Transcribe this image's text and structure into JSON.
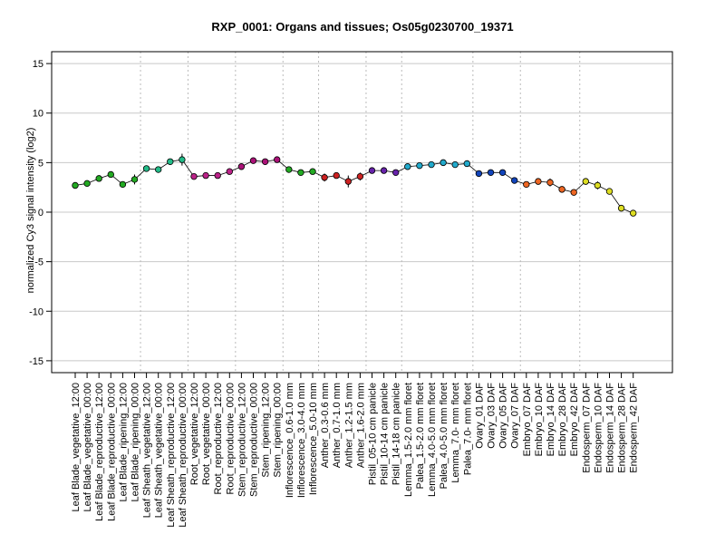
{
  "chart_data": {
    "type": "line",
    "title": "RXP_0001: Organs and tissues; Os05g0230700_19371",
    "ylabel": "normalized Cy3 signal intensity (log2)",
    "xlabel": "",
    "ylim": [
      -16.2,
      16.2
    ],
    "yticks": [
      -15,
      -10,
      -5,
      0,
      5,
      10,
      15
    ],
    "grid": true,
    "categories": [
      "Leaf Blade_vegetative_12:00",
      "Leaf Blade_vegetative_00:00",
      "Leaf Blade_reproductive_12:00",
      "Leaf Blade_reproductive_00:00",
      "Leaf Blade_ripening_12:00",
      "Leaf Blade_ripening_00:00",
      "Leaf Sheath_vegetative_12:00",
      "Leaf Sheath_vegetative_00:00",
      "Leaf Sheath_reproductive_12:00",
      "Leaf Sheath_reproductive_00:00",
      "Root_vegetative_12:00",
      "Root_vegetative_00:00",
      "Root_reproductive_12:00",
      "Root_reproductive_00:00",
      "Stem_reproductive_12:00",
      "Stem_reproductive_00:00",
      "Stem_ripening_12:00",
      "Stem_ripening_00:00",
      "Inflorescence_0.6-1.0 mm",
      "Inflorescence_3.0-4.0 mm",
      "Inflorescence_5.0-10 mm",
      "Anther_0.3-0.6 mm",
      "Anther_0.7-1.0 mm",
      "Anther_1.2-1.5 mm",
      "Anther_1.6-2.0 mm",
      "Pistil_05-10 cm panicle",
      "Pistil_10-14 cm panicle",
      "Pistil_14-18 cm panicle",
      "Lemma_1.5-2.0 mm floret",
      "Palea_1.5-2.0 mm floret",
      "Lemma_4.0-5.0 mm floret",
      "Palea_4.0-5.0 mm floret",
      "Lemma_7.0- mm floret",
      "Palea_7.0- mm floret",
      "Ovary_01 DAF",
      "Ovary_03 DAF",
      "Ovary_05 DAF",
      "Ovary_07 DAF",
      "Embryo_07 DAF",
      "Embryo_10 DAF",
      "Embryo_14 DAF",
      "Embryo_28 DAF",
      "Embryo_42 DAF",
      "Endosperm_07 DAF",
      "Endosperm_10 DAF",
      "Endosperm_14 DAF",
      "Endosperm_28 DAF",
      "Endosperm_42 DAF"
    ],
    "series": [
      {
        "values": [
          2.7,
          2.9,
          3.4,
          3.8,
          2.8,
          3.3,
          4.4,
          4.3,
          5.1,
          5.3,
          3.6,
          3.7,
          3.7,
          4.1,
          4.6,
          5.2,
          5.1,
          5.3,
          4.3,
          4.0,
          4.1,
          3.5,
          3.7,
          3.1,
          3.6,
          4.2,
          4.2,
          4.0,
          4.6,
          4.7,
          4.8,
          5.0,
          4.8,
          4.9,
          3.9,
          4.0,
          4.0,
          3.2,
          2.8,
          3.1,
          3.0,
          2.3,
          2.0,
          3.1,
          2.7,
          2.1,
          0.4,
          -0.1
        ],
        "errors": [
          0.3,
          0.2,
          0.2,
          0.2,
          0.2,
          0.5,
          0.2,
          0.1,
          0.3,
          0.6,
          0.2,
          0.1,
          0.1,
          0.1,
          0.3,
          0.2,
          0.2,
          0.1,
          0.3,
          0.1,
          0.2,
          0.4,
          0.2,
          0.6,
          0.4,
          0.1,
          0.1,
          0.2,
          0.1,
          0.1,
          0.2,
          0.2,
          0.1,
          0.2,
          0.1,
          0.1,
          0.2,
          0.1,
          0.1,
          0.1,
          0.4,
          0.1,
          0.1,
          0.2,
          0.4,
          0.2,
          0.3,
          0.1
        ],
        "colors": [
          "#22aa22",
          "#22aa22",
          "#22aa22",
          "#22aa22",
          "#22aa22",
          "#22aa22",
          "#22bb88",
          "#22bb88",
          "#22bb88",
          "#22bb88",
          "#bb2288",
          "#bb2288",
          "#bb2288",
          "#bb2288",
          "#aa1177",
          "#aa1177",
          "#aa1177",
          "#aa1177",
          "#22aa22",
          "#22aa22",
          "#22aa22",
          "#cc2222",
          "#cc2222",
          "#cc2222",
          "#cc2222",
          "#6622aa",
          "#6622aa",
          "#6622aa",
          "#22aacc",
          "#22aacc",
          "#22aacc",
          "#22aacc",
          "#22aacc",
          "#22aacc",
          "#1144bb",
          "#1144bb",
          "#1144bb",
          "#1144bb",
          "#ee6622",
          "#ee6622",
          "#ee6622",
          "#ee6622",
          "#ee6622",
          "#dddd22",
          "#dddd22",
          "#dddd22",
          "#dddd22",
          "#dddd22"
        ]
      }
    ],
    "vgrid_after": [
      5,
      9,
      13,
      17,
      20,
      24,
      27,
      33,
      37,
      42
    ]
  }
}
